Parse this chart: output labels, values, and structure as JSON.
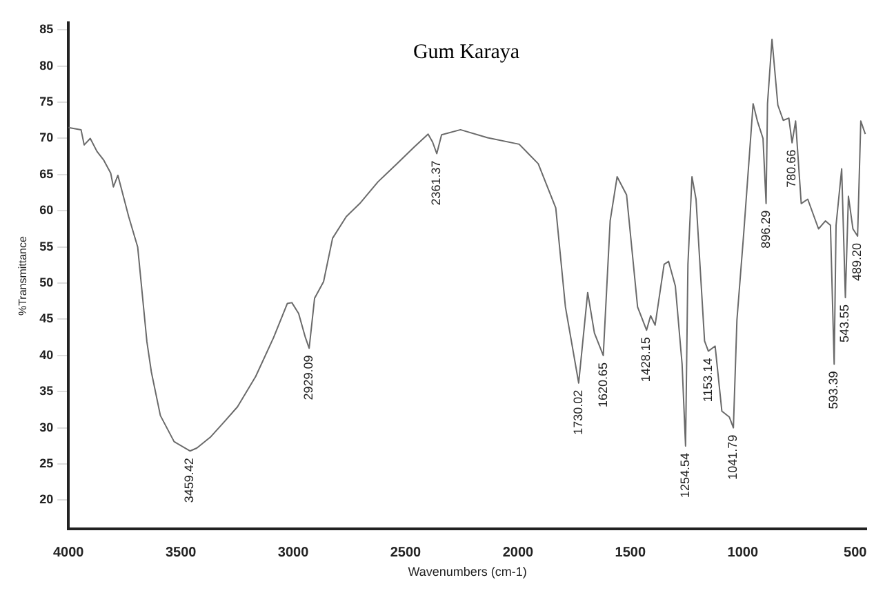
{
  "chart_data": {
    "type": "line",
    "title": "Gum Karaya",
    "xlabel": "Wavenumbers (cm-1)",
    "ylabel": "%Transmittance",
    "xlim": [
      4000,
      450
    ],
    "xticks": [
      4000,
      3500,
      3000,
      2500,
      2000,
      1500,
      1000,
      500
    ],
    "ylim": [
      16,
      86
    ],
    "yticks": [
      20,
      25,
      30,
      35,
      40,
      45,
      50,
      55,
      60,
      65,
      70,
      75,
      80,
      85
    ],
    "grid": false,
    "legend": false,
    "marker": "none",
    "line_style": "solid",
    "series": [
      {
        "color": "#6a6a6a",
        "x": [
          4000,
          3944,
          3930,
          3903,
          3873,
          3843,
          3812,
          3800,
          3780,
          3732,
          3692,
          3651,
          3631,
          3591,
          3530,
          3459.42,
          3429,
          3369,
          3308,
          3248,
          3167,
          3087,
          3026,
          3006,
          2976,
          2946,
          2929.09,
          2905,
          2865,
          2825,
          2764,
          2704,
          2623,
          2542,
          2462,
          2400,
          2380,
          2361.37,
          2340,
          2256,
          2135,
          1995,
          1910,
          1832,
          1789,
          1730.02,
          1690,
          1660,
          1620.65,
          1590,
          1559,
          1517,
          1468,
          1428.15,
          1410,
          1390,
          1350,
          1330,
          1300,
          1270,
          1254.54,
          1244,
          1226,
          1208,
          1170,
          1153.14,
          1123,
          1093,
          1060,
          1041.79,
          1026,
          996,
          954,
          935,
          910,
          896.29,
          890,
          870,
          844,
          820,
          795,
          780.66,
          765,
          740,
          711,
          663,
          632,
          610,
          593.39,
          585,
          560,
          543.55,
          530,
          510,
          489.2,
          475,
          455
        ],
        "values": [
          71.5,
          71.2,
          69.1,
          70,
          68.2,
          67,
          65.2,
          63.3,
          64.9,
          59.2,
          55,
          41.9,
          37.7,
          31.7,
          28.1,
          26.8,
          27.2,
          28.7,
          30.8,
          32.9,
          37.1,
          42.5,
          47.2,
          47.3,
          45.8,
          42.5,
          41,
          47.9,
          50.2,
          56.2,
          59.2,
          61,
          64,
          66.4,
          68.8,
          70.6,
          69.5,
          67.9,
          70.5,
          71.2,
          70.1,
          69.2,
          66.5,
          60.4,
          46.7,
          36.2,
          48.7,
          43.1,
          40,
          58.6,
          64.7,
          62.2,
          46.7,
          43.5,
          45.5,
          44.2,
          52.6,
          53,
          49.6,
          38.8,
          27.5,
          52.6,
          64.7,
          61.6,
          42,
          40.6,
          41.3,
          32.3,
          31.5,
          30,
          44.9,
          56.8,
          74.8,
          72.4,
          70,
          61,
          74.8,
          83.7,
          74.6,
          72.5,
          72.8,
          69.4,
          72.4,
          61,
          61.6,
          57.5,
          58.6,
          58,
          38.8,
          58,
          65.8,
          48,
          62,
          57.5,
          56.5,
          72.4,
          70.6
        ]
      }
    ],
    "annotations": [
      {
        "text": "3459.42",
        "x": 3459.42,
        "y": 26.8
      },
      {
        "text": "2929.09",
        "x": 2929.09,
        "y": 41
      },
      {
        "text": "2361.37",
        "x": 2361.37,
        "y": 67.9
      },
      {
        "text": "1730.02",
        "x": 1730.02,
        "y": 36.2
      },
      {
        "text": "1620.65",
        "x": 1620.65,
        "y": 40
      },
      {
        "text": "1428.15",
        "x": 1428.15,
        "y": 43.5
      },
      {
        "text": "1254.54",
        "x": 1254.54,
        "y": 27.5
      },
      {
        "text": "1153.14",
        "x": 1153.14,
        "y": 40.6
      },
      {
        "text": "1041.79",
        "x": 1041.79,
        "y": 30
      },
      {
        "text": "896.29",
        "x": 896.29,
        "y": 61
      },
      {
        "text": "780.66",
        "x": 780.66,
        "y": 69.4
      },
      {
        "text": "593.39",
        "x": 593.39,
        "y": 38.8
      },
      {
        "text": "543.55",
        "x": 543.55,
        "y": 48
      },
      {
        "text": "489.20",
        "x": 489.2,
        "y": 56.5
      }
    ]
  }
}
